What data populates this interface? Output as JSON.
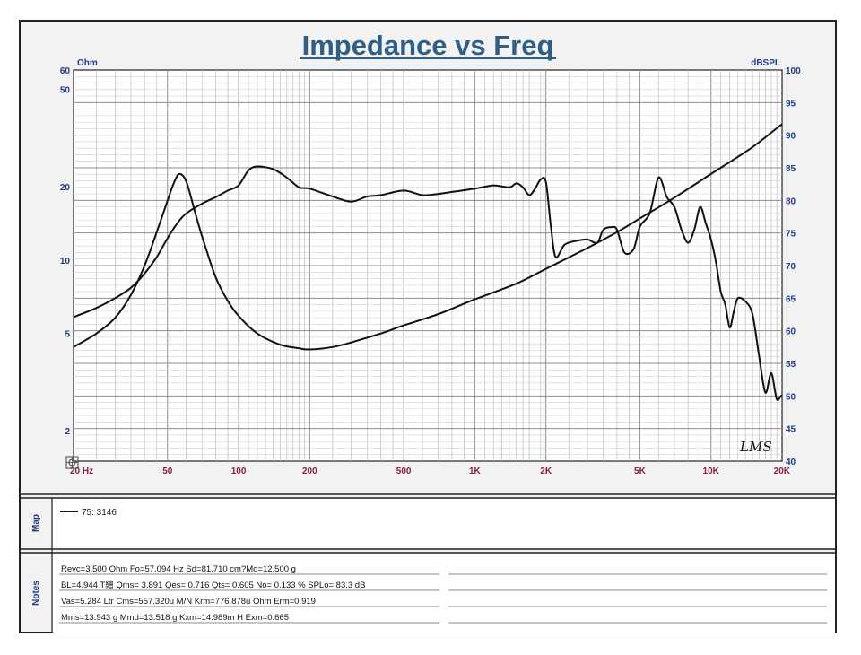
{
  "chart_data": {
    "type": "line",
    "title": "Impedance vs Freq",
    "x_scale": "log",
    "xlim": [
      20,
      20000
    ],
    "x_ticks": [
      {
        "value": 20,
        "label": "20  Hz"
      },
      {
        "value": 50,
        "label": "50"
      },
      {
        "value": 100,
        "label": "100"
      },
      {
        "value": 200,
        "label": "200"
      },
      {
        "value": 500,
        "label": "500"
      },
      {
        "value": 1000,
        "label": "1K"
      },
      {
        "value": 2000,
        "label": "2K"
      },
      {
        "value": 5000,
        "label": "5K"
      },
      {
        "value": 10000,
        "label": "10K"
      },
      {
        "value": 20000,
        "label": "20K"
      }
    ],
    "y_left": {
      "label": "Ohm",
      "scale": "log",
      "lim": [
        1.5,
        60
      ],
      "ticks": [
        {
          "value": 60,
          "label": "60"
        },
        {
          "value": 50,
          "label": "50"
        },
        {
          "value": 20,
          "label": "20"
        },
        {
          "value": 10,
          "label": "10"
        },
        {
          "value": 5,
          "label": "5"
        },
        {
          "value": 2,
          "label": "2"
        }
      ]
    },
    "y_right": {
      "label": "dBSPL",
      "scale": "linear",
      "lim": [
        40,
        100
      ],
      "ticks": [
        100,
        95,
        90,
        85,
        80,
        75,
        70,
        65,
        60,
        55,
        50,
        45,
        40
      ]
    },
    "grid": true,
    "series": [
      {
        "axis": "right",
        "values": [
          [
            20,
            62.1
          ],
          [
            25,
            63.5
          ],
          [
            30,
            65.0
          ],
          [
            35,
            66.6
          ],
          [
            40,
            68.8
          ],
          [
            45,
            71.3
          ],
          [
            50,
            74.2
          ],
          [
            55,
            76.5
          ],
          [
            60,
            78.0
          ],
          [
            70,
            79.5
          ],
          [
            80,
            80.5
          ],
          [
            90,
            81.5
          ],
          [
            100,
            82.3
          ],
          [
            110,
            84.6
          ],
          [
            120,
            85.2
          ],
          [
            140,
            84.8
          ],
          [
            160,
            83.5
          ],
          [
            180,
            82.0
          ],
          [
            200,
            81.8
          ],
          [
            250,
            80.6
          ],
          [
            300,
            79.8
          ],
          [
            350,
            80.6
          ],
          [
            400,
            80.8
          ],
          [
            500,
            81.5
          ],
          [
            600,
            80.8
          ],
          [
            700,
            81.0
          ],
          [
            800,
            81.3
          ],
          [
            1000,
            81.8
          ],
          [
            1200,
            82.3
          ],
          [
            1400,
            82.0
          ],
          [
            1500,
            82.6
          ],
          [
            1600,
            82.0
          ],
          [
            1700,
            80.8
          ],
          [
            1800,
            81.8
          ],
          [
            1900,
            83.2
          ],
          [
            2000,
            82.8
          ],
          [
            2100,
            76.0
          ],
          [
            2200,
            71.3
          ],
          [
            2400,
            73.2
          ],
          [
            2700,
            73.8
          ],
          [
            3000,
            74.0
          ],
          [
            3300,
            73.5
          ],
          [
            3500,
            75.5
          ],
          [
            3800,
            75.9
          ],
          [
            4000,
            75.5
          ],
          [
            4300,
            72.0
          ],
          [
            4700,
            72.5
          ],
          [
            5000,
            76.0
          ],
          [
            5500,
            78.0
          ],
          [
            6000,
            83.5
          ],
          [
            6500,
            80.5
          ],
          [
            7000,
            79.0
          ],
          [
            7500,
            75.5
          ],
          [
            8000,
            73.5
          ],
          [
            8500,
            75.5
          ],
          [
            9000,
            79.0
          ],
          [
            9500,
            76.5
          ],
          [
            10000,
            74.0
          ],
          [
            10500,
            70.5
          ],
          [
            11000,
            66.0
          ],
          [
            11500,
            64.0
          ],
          [
            12000,
            60.5
          ],
          [
            12500,
            63.0
          ],
          [
            13000,
            65.0
          ],
          [
            14000,
            64.5
          ],
          [
            15000,
            62.5
          ],
          [
            16000,
            56.0
          ],
          [
            17000,
            50.5
          ],
          [
            18000,
            53.5
          ],
          [
            19000,
            49.5
          ],
          [
            20000,
            50.0
          ],
          [
            21000,
            47.5
          ],
          [
            22000,
            45.5
          ],
          [
            23000,
            48.0
          ],
          [
            24000,
            48.3
          ]
        ]
      },
      {
        "axis": "left",
        "name": "75:  3146",
        "values": [
          [
            20,
            4.4
          ],
          [
            25,
            5.0
          ],
          [
            30,
            5.8
          ],
          [
            35,
            7.2
          ],
          [
            40,
            9.5
          ],
          [
            45,
            13.0
          ],
          [
            50,
            17.5
          ],
          [
            53,
            20.5
          ],
          [
            56,
            22.5
          ],
          [
            60,
            21.0
          ],
          [
            65,
            16.0
          ],
          [
            70,
            12.5
          ],
          [
            80,
            8.5
          ],
          [
            90,
            6.8
          ],
          [
            100,
            5.9
          ],
          [
            120,
            5.0
          ],
          [
            150,
            4.5
          ],
          [
            180,
            4.35
          ],
          [
            200,
            4.3
          ],
          [
            250,
            4.4
          ],
          [
            300,
            4.6
          ],
          [
            400,
            5.0
          ],
          [
            500,
            5.4
          ],
          [
            700,
            6.0
          ],
          [
            1000,
            6.9
          ],
          [
            1500,
            8.0
          ],
          [
            2000,
            9.2
          ],
          [
            3000,
            11.2
          ],
          [
            4000,
            13.0
          ],
          [
            5000,
            14.8
          ],
          [
            7000,
            18.0
          ],
          [
            10000,
            22.5
          ],
          [
            15000,
            29.0
          ],
          [
            20000,
            36.0
          ],
          [
            24000,
            40.0
          ]
        ]
      }
    ]
  },
  "panels": {
    "map_label": "Map",
    "notes_label": "Notes",
    "legend_entry": "75:  3146"
  },
  "notes": [
    "Revc=3.500 Ohm  Fo=57.094 Hz  Sd=81.710 cm?Md=12.500 g",
    "BL=4.944 T繪  Qms= 3.891  Qes= 0.716  Qts= 0.605  No= 0.133 %  SPLo= 83.3 dB",
    "Vas=5.284 Ltr  Cms=557.320u M/N  Krm=776.878u Ohm  Erm=0.919",
    "Mms=13.943 g  Mmd=13.518 g  Kxm=14.989m H  Exm=0.665"
  ],
  "signature": "LMS"
}
